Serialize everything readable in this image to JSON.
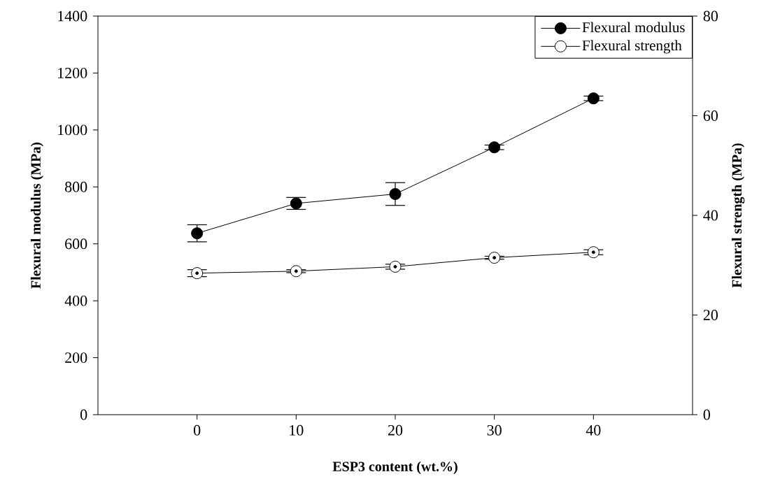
{
  "chart_data": {
    "type": "line",
    "xlabel": "ESP3 content (wt.%)",
    "ylabel": "Flexural modulus (MPa)",
    "y2label": "Flexural strength (MPa)",
    "x": [
      0,
      10,
      20,
      30,
      40
    ],
    "xlim": [
      -10,
      50
    ],
    "xticks": [
      0,
      10,
      20,
      30,
      40
    ],
    "ylim": [
      0,
      1400
    ],
    "yticks": [
      0,
      200,
      400,
      600,
      800,
      1000,
      1200,
      1400
    ],
    "y2lim": [
      0,
      80
    ],
    "y2ticks": [
      0,
      20,
      40,
      60,
      80
    ],
    "marker": "circle",
    "line_style": "solid",
    "legend": "top right",
    "grid": false,
    "series": [
      {
        "name": "Flexural modulus",
        "color": "#000000",
        "values": [
          637,
          742,
          775,
          939,
          1111
        ],
        "errors": [
          30,
          21,
          40,
          8,
          8
        ]
      },
      {
        "name": "Flexural strength",
        "color": "#ffffff",
        "axis": "y2",
        "values": [
          28.4,
          28.8,
          29.7,
          31.5,
          32.6
        ],
        "errors": [
          0.7,
          0.3,
          0.5,
          0.3,
          0.5
        ]
      }
    ]
  }
}
